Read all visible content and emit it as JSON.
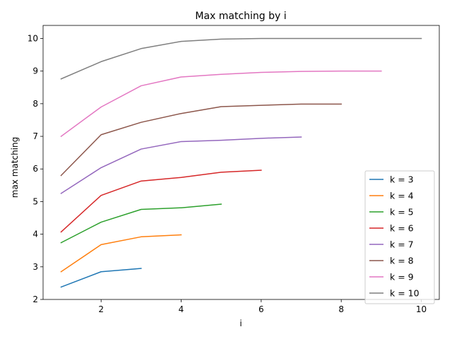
{
  "chart_data": {
    "type": "line",
    "title": "Max matching by i",
    "xlabel": "i",
    "ylabel": "max matching",
    "xlim": [
      0.55,
      10.45
    ],
    "ylim": [
      2,
      10.4
    ],
    "xticks": [
      2,
      4,
      6,
      8,
      10
    ],
    "yticks": [
      2,
      3,
      4,
      5,
      6,
      7,
      8,
      9,
      10
    ],
    "grid": false,
    "legend_position": "lower right",
    "series": [
      {
        "name": "k = 3",
        "color": "#1f77b4",
        "x": [
          1,
          2,
          3
        ],
        "y": [
          2.38,
          2.85,
          2.95
        ]
      },
      {
        "name": "k = 4",
        "color": "#ff7f0e",
        "x": [
          1,
          2,
          3,
          4
        ],
        "y": [
          2.85,
          3.68,
          3.92,
          3.98
        ]
      },
      {
        "name": "k = 5",
        "color": "#2ca02c",
        "x": [
          1,
          2,
          3,
          4,
          5
        ],
        "y": [
          3.74,
          4.37,
          4.76,
          4.81,
          4.92
        ]
      },
      {
        "name": "k = 6",
        "color": "#d62728",
        "x": [
          1,
          2,
          3,
          4,
          5,
          6
        ],
        "y": [
          4.07,
          5.19,
          5.63,
          5.74,
          5.9,
          5.96
        ]
      },
      {
        "name": "k = 7",
        "color": "#9467bd",
        "x": [
          1,
          2,
          3,
          4,
          5,
          6,
          7
        ],
        "y": [
          5.25,
          6.04,
          6.61,
          6.84,
          6.88,
          6.94,
          6.98
        ]
      },
      {
        "name": "k = 8",
        "color": "#8c564b",
        "x": [
          1,
          2,
          3,
          4,
          5,
          6,
          7,
          8
        ],
        "y": [
          5.8,
          7.05,
          7.43,
          7.7,
          7.91,
          7.95,
          7.99,
          7.99
        ]
      },
      {
        "name": "k = 9",
        "color": "#e377c2",
        "x": [
          1,
          2,
          3,
          4,
          5,
          6,
          7,
          8,
          9
        ],
        "y": [
          7.0,
          7.9,
          8.55,
          8.82,
          8.9,
          8.96,
          8.99,
          9.0,
          9.0
        ]
      },
      {
        "name": "k = 10",
        "color": "#7f7f7f",
        "x": [
          1,
          2,
          3,
          4,
          5,
          6,
          7,
          8,
          9,
          10
        ],
        "y": [
          8.76,
          9.29,
          9.69,
          9.91,
          9.98,
          10.0,
          10.0,
          10.0,
          10.0,
          10.0
        ]
      }
    ]
  }
}
